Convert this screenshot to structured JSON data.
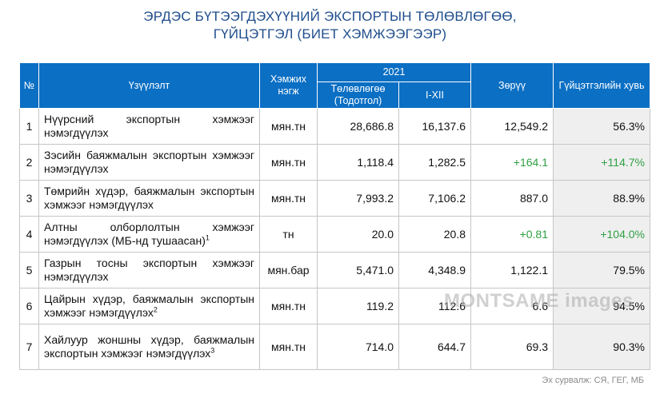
{
  "title": {
    "line1": "ЭРДЭС БҮТЭЭГДЭХҮҮНИЙ ЭКСПОРТЫН ТӨЛӨВЛӨГӨӨ,",
    "line2": "ГҮЙЦЭТГЭЛ (БИЕТ ХЭМЖЭЭГЭЭР)"
  },
  "headers": {
    "no": "№",
    "indicator": "Үзүүлэлт",
    "unit": "Хэмжих нэгж",
    "year": "2021",
    "plan": "Төлөвлөгөө (Тодотгол)",
    "actual": "I-XII",
    "diff": "Зөрүү",
    "perf": "Гүйцэтгэлийн хувь"
  },
  "rows": [
    {
      "no": "1",
      "indicator": "Нүүрсний экспортын хэмжээг нэмэгдүүлэх",
      "unit": "мян.тн",
      "plan": "28,686.8",
      "actual": "16,137.6",
      "diff": "12,549.2",
      "perf": "56.3%"
    },
    {
      "no": "2",
      "indicator": "Зэсийн баяжмалын экспортын хэмжээг нэмэгдүүлэх",
      "unit": "мян.тн",
      "plan": "1,118.4",
      "actual": "1,282.5",
      "diff": "+164.1",
      "perf": "+114.7%"
    },
    {
      "no": "3",
      "indicator": "Төмрийн хүдэр, баяжмалын экспортын хэмжээг нэмэгдүүлэх",
      "unit": "мян.тн",
      "plan": "7,993.2",
      "actual": "7,106.2",
      "diff": "887.0",
      "perf": "88.9%"
    },
    {
      "no": "4",
      "indicator": "Алтны олборлолтын хэмжээг нэмэгдүүлэх (МБ-нд тушаасан)",
      "sup": "1",
      "unit": "тн",
      "plan": "20.0",
      "actual": "20.8",
      "diff": "+0.81",
      "perf": "+104.0%"
    },
    {
      "no": "5",
      "indicator": "Газрын тосны экспортын хэмжээг нэмэгдүүлэх",
      "unit": "мян.бар",
      "plan": "5,471.0",
      "actual": "4,348.9",
      "diff": "1,122.1",
      "perf": "79.5%"
    },
    {
      "no": "6",
      "indicator": "Цайрын хүдэр, баяжмалын экспортын хэмжээг нэмэгдүүлэх",
      "sup": "2",
      "unit": "мян.тн",
      "plan": "119.2",
      "actual": "112.6",
      "diff": "6.6",
      "perf": "94.5%"
    },
    {
      "no": "7",
      "indicator": "Хайлуур жоншны хүдэр, баяжмалын экспортын хэмжээг нэмэгдүүлэх",
      "sup": "3",
      "unit": "мян.тн",
      "plan": "714.0",
      "actual": "644.7",
      "diff": "69.3",
      "perf": "90.3%"
    }
  ],
  "source": "Эх сурвалж: СЯ, ГЕГ, МБ",
  "watermark": "MONTSAME images",
  "colors": {
    "title": "#1f4e8c",
    "header_bg": "#0b6fc4",
    "header_text": "#ffffff",
    "positive": "#2ea043",
    "shaded_cell": "#efefef"
  }
}
